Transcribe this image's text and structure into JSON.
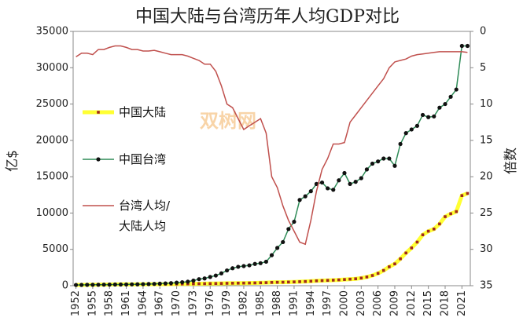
{
  "chart_data": {
    "type": "line",
    "title": "中国大陆与台湾历年人均GDP对比",
    "watermark": "双树网",
    "ylabel": "亿$",
    "y2label": "倍数",
    "x": [
      1952,
      1953,
      1954,
      1955,
      1956,
      1957,
      1958,
      1959,
      1960,
      1961,
      1962,
      1963,
      1964,
      1965,
      1966,
      1967,
      1968,
      1969,
      1970,
      1971,
      1972,
      1973,
      1974,
      1975,
      1976,
      1977,
      1978,
      1979,
      1980,
      1981,
      1982,
      1983,
      1984,
      1985,
      1986,
      1987,
      1988,
      1989,
      1990,
      1991,
      1992,
      1993,
      1994,
      1995,
      1996,
      1997,
      1998,
      1999,
      2000,
      2001,
      2002,
      2003,
      2004,
      2005,
      2006,
      2007,
      2008,
      2009,
      2010,
      2011,
      2012,
      2013,
      2014,
      2015,
      2016,
      2017,
      2018,
      2019,
      2020,
      2021,
      2022
    ],
    "xlim": [
      1951.5,
      2022.5
    ],
    "xticks": [
      1952,
      1955,
      1958,
      1961,
      1964,
      1967,
      1970,
      1973,
      1976,
      1979,
      1982,
      1985,
      1988,
      1991,
      1994,
      1997,
      2000,
      2003,
      2006,
      2009,
      2012,
      2015,
      2018,
      2021
    ],
    "ylim": [
      0,
      35000
    ],
    "yticks": [
      0,
      5000,
      10000,
      15000,
      20000,
      25000,
      30000,
      35000
    ],
    "y2lim": [
      0,
      35
    ],
    "y2ticks": [
      0,
      5,
      10,
      15,
      20,
      25,
      30,
      35
    ],
    "y2_inverted": true,
    "grid": false,
    "series": [
      {
        "name": "中国大陆",
        "color": "#ffff33",
        "marker_color": "#a0281e",
        "marker": "square",
        "values": [
          100,
          110,
          120,
          130,
          140,
          150,
          160,
          170,
          180,
          180,
          170,
          180,
          190,
          200,
          210,
          200,
          210,
          220,
          230,
          240,
          250,
          260,
          270,
          280,
          290,
          300,
          310,
          330,
          340,
          350,
          360,
          370,
          380,
          400,
          420,
          450,
          470,
          480,
          500,
          520,
          550,
          580,
          620,
          670,
          700,
          730,
          760,
          800,
          850,
          900,
          950,
          1050,
          1200,
          1400,
          1700,
          2100,
          2600,
          3000,
          3700,
          4500,
          5200,
          6000,
          7000,
          7500,
          7800,
          8500,
          9500,
          9900,
          10200,
          12400,
          12700
        ]
      },
      {
        "name": "中国台湾",
        "color": "#2e8b57",
        "marker_color": "#111111",
        "marker": "circle",
        "values": [
          100,
          110,
          120,
          130,
          130,
          140,
          150,
          160,
          160,
          170,
          180,
          190,
          210,
          230,
          250,
          280,
          320,
          360,
          420,
          480,
          550,
          700,
          900,
          1000,
          1200,
          1400,
          1700,
          2100,
          2400,
          2600,
          2700,
          2800,
          3000,
          3100,
          3300,
          4200,
          5200,
          6000,
          7800,
          8800,
          11800,
          12300,
          13000,
          14000,
          14200,
          13400,
          13200,
          14500,
          15500,
          14000,
          14300,
          14800,
          16000,
          16800,
          17100,
          17500,
          17500,
          16500,
          19500,
          21000,
          21500,
          22000,
          23500,
          23200,
          23300,
          24500,
          25000,
          26000,
          27000,
          33000,
          33000
        ]
      },
      {
        "name": "台湾人均/大陆人均",
        "color": "#c0504d",
        "axis": "y2",
        "marker": "none",
        "values": [
          3.5,
          3,
          3,
          3.2,
          2.5,
          2.5,
          2.2,
          2,
          2,
          2.2,
          2.5,
          2.5,
          2.7,
          2.7,
          2.6,
          2.8,
          3,
          3.2,
          3.2,
          3.2,
          3.4,
          3.7,
          4,
          4.5,
          4.5,
          5.5,
          7.5,
          10,
          10.5,
          12,
          13.5,
          13,
          12.5,
          12,
          14,
          20,
          21.5,
          24,
          26,
          27.5,
          29,
          29.3,
          26,
          22,
          19,
          17.5,
          15.5,
          15.5,
          15.3,
          12.5,
          11.5,
          10.5,
          9.5,
          8.5,
          7.5,
          6.5,
          5,
          4.2,
          4,
          3.8,
          3.4,
          3.2,
          3.1,
          3,
          2.9,
          2.8,
          2.8,
          2.8,
          2.8,
          2.8,
          2.9
        ]
      }
    ]
  }
}
